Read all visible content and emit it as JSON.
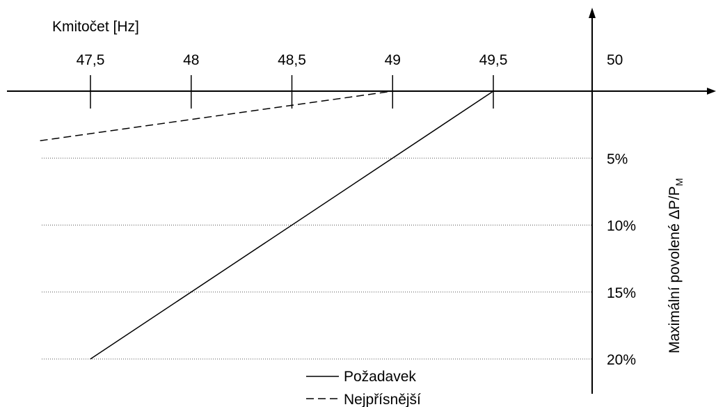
{
  "chart_data": {
    "type": "line",
    "xlabel": "Kmitočet [Hz]",
    "ylabel": "Maximální povolené ΔP/P",
    "ylabel_subscript": "M",
    "x_ticks": [
      "47,5",
      "48",
      "48,5",
      "49",
      "49,5",
      "50"
    ],
    "x_tick_values": [
      47.5,
      48,
      48.5,
      49,
      49.5,
      50
    ],
    "y_ticks": [
      "5%",
      "10%",
      "15%",
      "20%"
    ],
    "y_tick_values": [
      5,
      10,
      15,
      20
    ],
    "xlim": [
      47.25,
      50.6
    ],
    "ylim": [
      0,
      20
    ],
    "y_inverted": true,
    "grid": "dotted horizontal lines at y ticks",
    "series": [
      {
        "name": "Požadavek",
        "style": "solid",
        "color": "#000000",
        "points": [
          {
            "x": 47.5,
            "y": 20
          },
          {
            "x": 49.5,
            "y": 0
          }
        ]
      },
      {
        "name": "Nejpřísnější",
        "style": "dashed",
        "color": "#000000",
        "points": [
          {
            "x": 47.25,
            "y": 3.7
          },
          {
            "x": 49,
            "y": 0
          }
        ]
      }
    ],
    "legend_position": "bottom-center"
  }
}
